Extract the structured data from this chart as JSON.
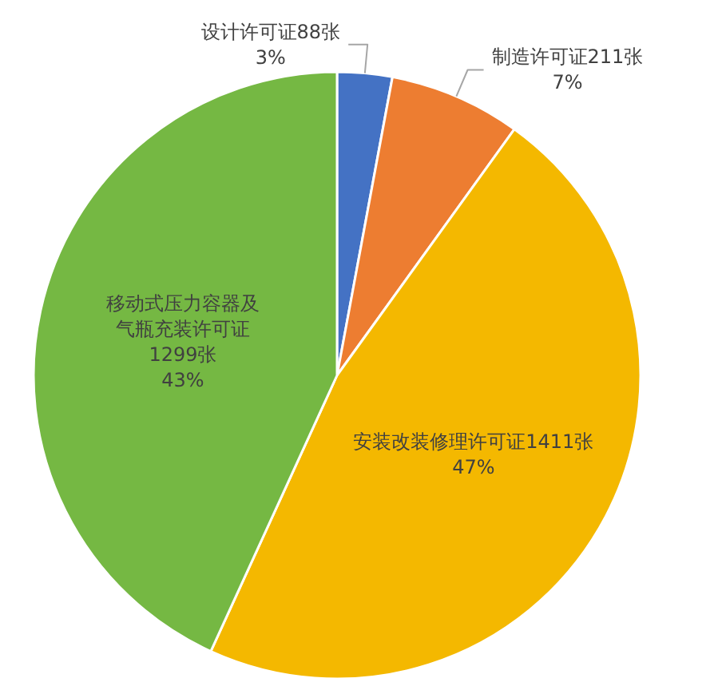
{
  "chart_data": {
    "type": "pie",
    "categories": [
      "设计许可证",
      "制造许可证",
      "安装改装修理许可证",
      "移动式压力容器及气瓶充装许可证"
    ],
    "values": [
      88,
      211,
      1411,
      1299
    ],
    "colors": [
      "#4472c4",
      "#ed7d31",
      "#f4b800",
      "#75b843"
    ],
    "value_labels": [
      "88张",
      "211张",
      "1411张",
      "1299张"
    ],
    "annotations": [
      "3%",
      "7%",
      "47%",
      "43%"
    ]
  }
}
